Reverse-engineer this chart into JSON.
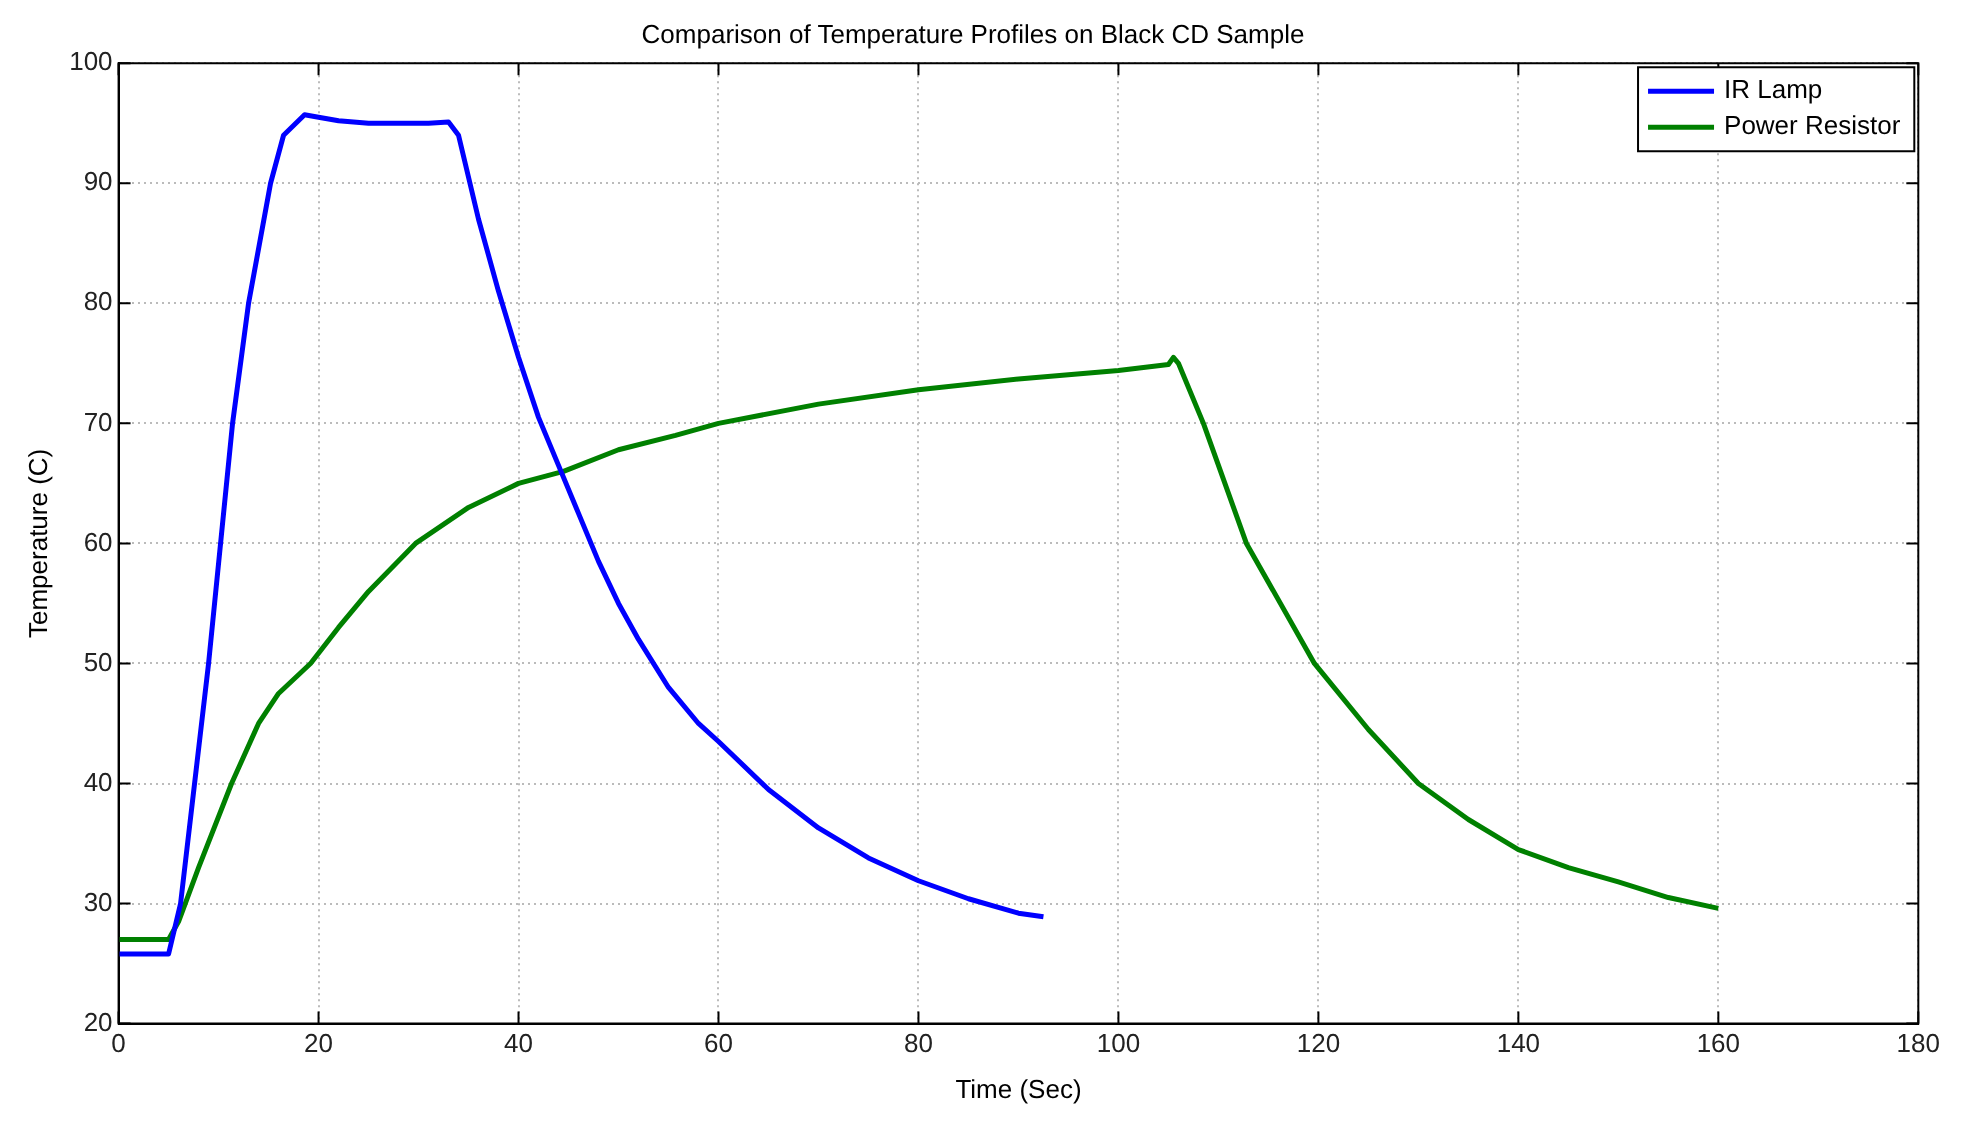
{
  "chart_data": {
    "type": "line",
    "title": "Comparison of Temperature Profiles on Black CD Sample",
    "xlabel": "Time (Sec)",
    "ylabel": "Temperature (C)",
    "xlim": [
      0,
      180
    ],
    "xticks": [
      0,
      20,
      40,
      60,
      80,
      100,
      120,
      140,
      160,
      180
    ],
    "ylim": [
      20,
      100
    ],
    "yticks": [
      20,
      30,
      40,
      50,
      60,
      70,
      80,
      90,
      100
    ],
    "grid": true,
    "legend": "top right",
    "marker": "none",
    "line_style": "solid",
    "series": [
      {
        "name": "IR Lamp",
        "color": "#0000ff",
        "x": [
          0,
          5,
          6.2,
          9,
          11.4,
          13,
          15.2,
          16.5,
          18.6,
          20,
          22,
          25,
          28,
          31,
          33,
          34,
          36,
          38,
          40,
          42,
          44,
          46,
          48,
          50,
          52,
          55,
          58,
          60,
          65,
          70,
          75,
          80,
          85,
          90,
          92.5
        ],
        "values": [
          25.8,
          25.8,
          30,
          50,
          70,
          80,
          90,
          94,
          95.7,
          95.5,
          95.2,
          95,
          95,
          95,
          95.1,
          94,
          87,
          81,
          75.5,
          70.5,
          66.5,
          62.5,
          58.5,
          55,
          52,
          48,
          45,
          43.5,
          39.5,
          36.3,
          33.8,
          31.9,
          30.4,
          29.2,
          28.9
        ]
      },
      {
        "name": "Power Resistor",
        "color": "#008000",
        "x": [
          0,
          5,
          6,
          8,
          11.3,
          14,
          16,
          19.2,
          22,
          25,
          29.7,
          35,
          40,
          44.5,
          50,
          55.7,
          60,
          70,
          80,
          90,
          100,
          105,
          105.5,
          106,
          108.5,
          112.8,
          119.6,
          125,
          130,
          135,
          140,
          145,
          150,
          155,
          160
        ],
        "values": [
          27,
          27,
          28.5,
          33,
          40,
          45,
          47.5,
          50,
          53,
          56,
          60,
          63,
          65,
          66,
          67.8,
          69,
          70,
          71.6,
          72.8,
          73.7,
          74.4,
          74.9,
          75.5,
          75,
          70,
          60,
          50,
          44.5,
          40,
          37,
          34.5,
          33,
          31.8,
          30.5,
          29.6
        ]
      }
    ]
  }
}
